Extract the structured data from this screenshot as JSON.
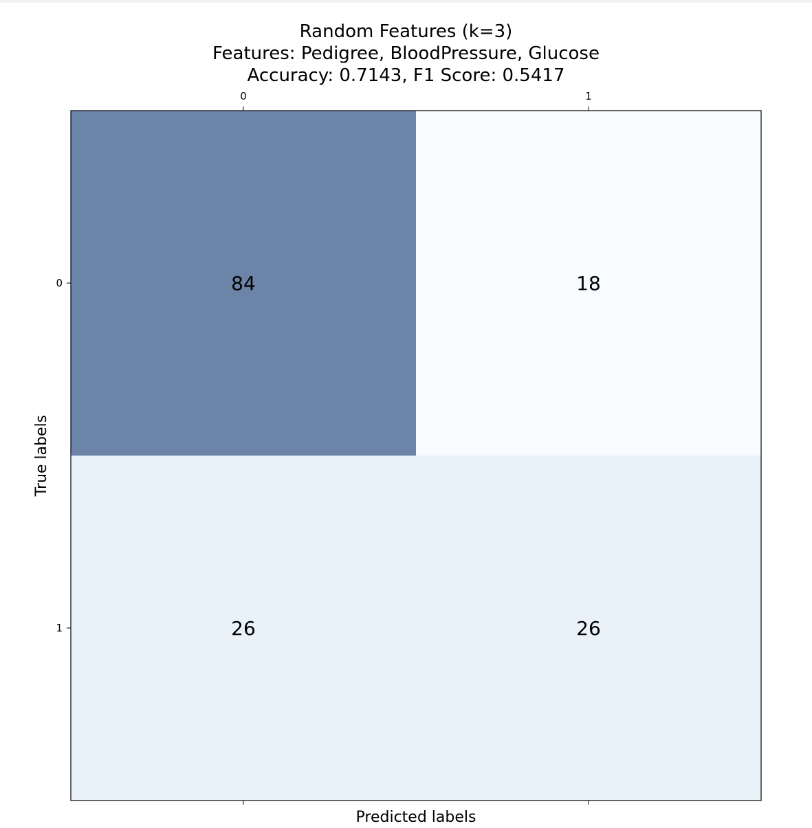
{
  "title_lines": [
    "Random Features (k=3)",
    "Features: Pedigree, BloodPressure, Glucose",
    "Accuracy: 0.7143, F1 Score: 0.5417"
  ],
  "chart_data": {
    "type": "heatmap",
    "title": "Random Features (k=3)\nFeatures: Pedigree, BloodPressure, Glucose\nAccuracy: 0.7143, F1 Score: 0.5417",
    "xlabel": "Predicted labels",
    "ylabel": "True labels",
    "x_categories": [
      "0",
      "1"
    ],
    "y_categories": [
      "0",
      "1"
    ],
    "values": [
      [
        84,
        18
      ],
      [
        26,
        26
      ]
    ],
    "x_ticks_position": "top and bottom",
    "colormap": "Blues",
    "cell_colors": [
      [
        "#6c84a8",
        "#f8fbff"
      ],
      [
        "#eaf2f9",
        "#eaf2f9"
      ]
    ],
    "grid": false
  }
}
